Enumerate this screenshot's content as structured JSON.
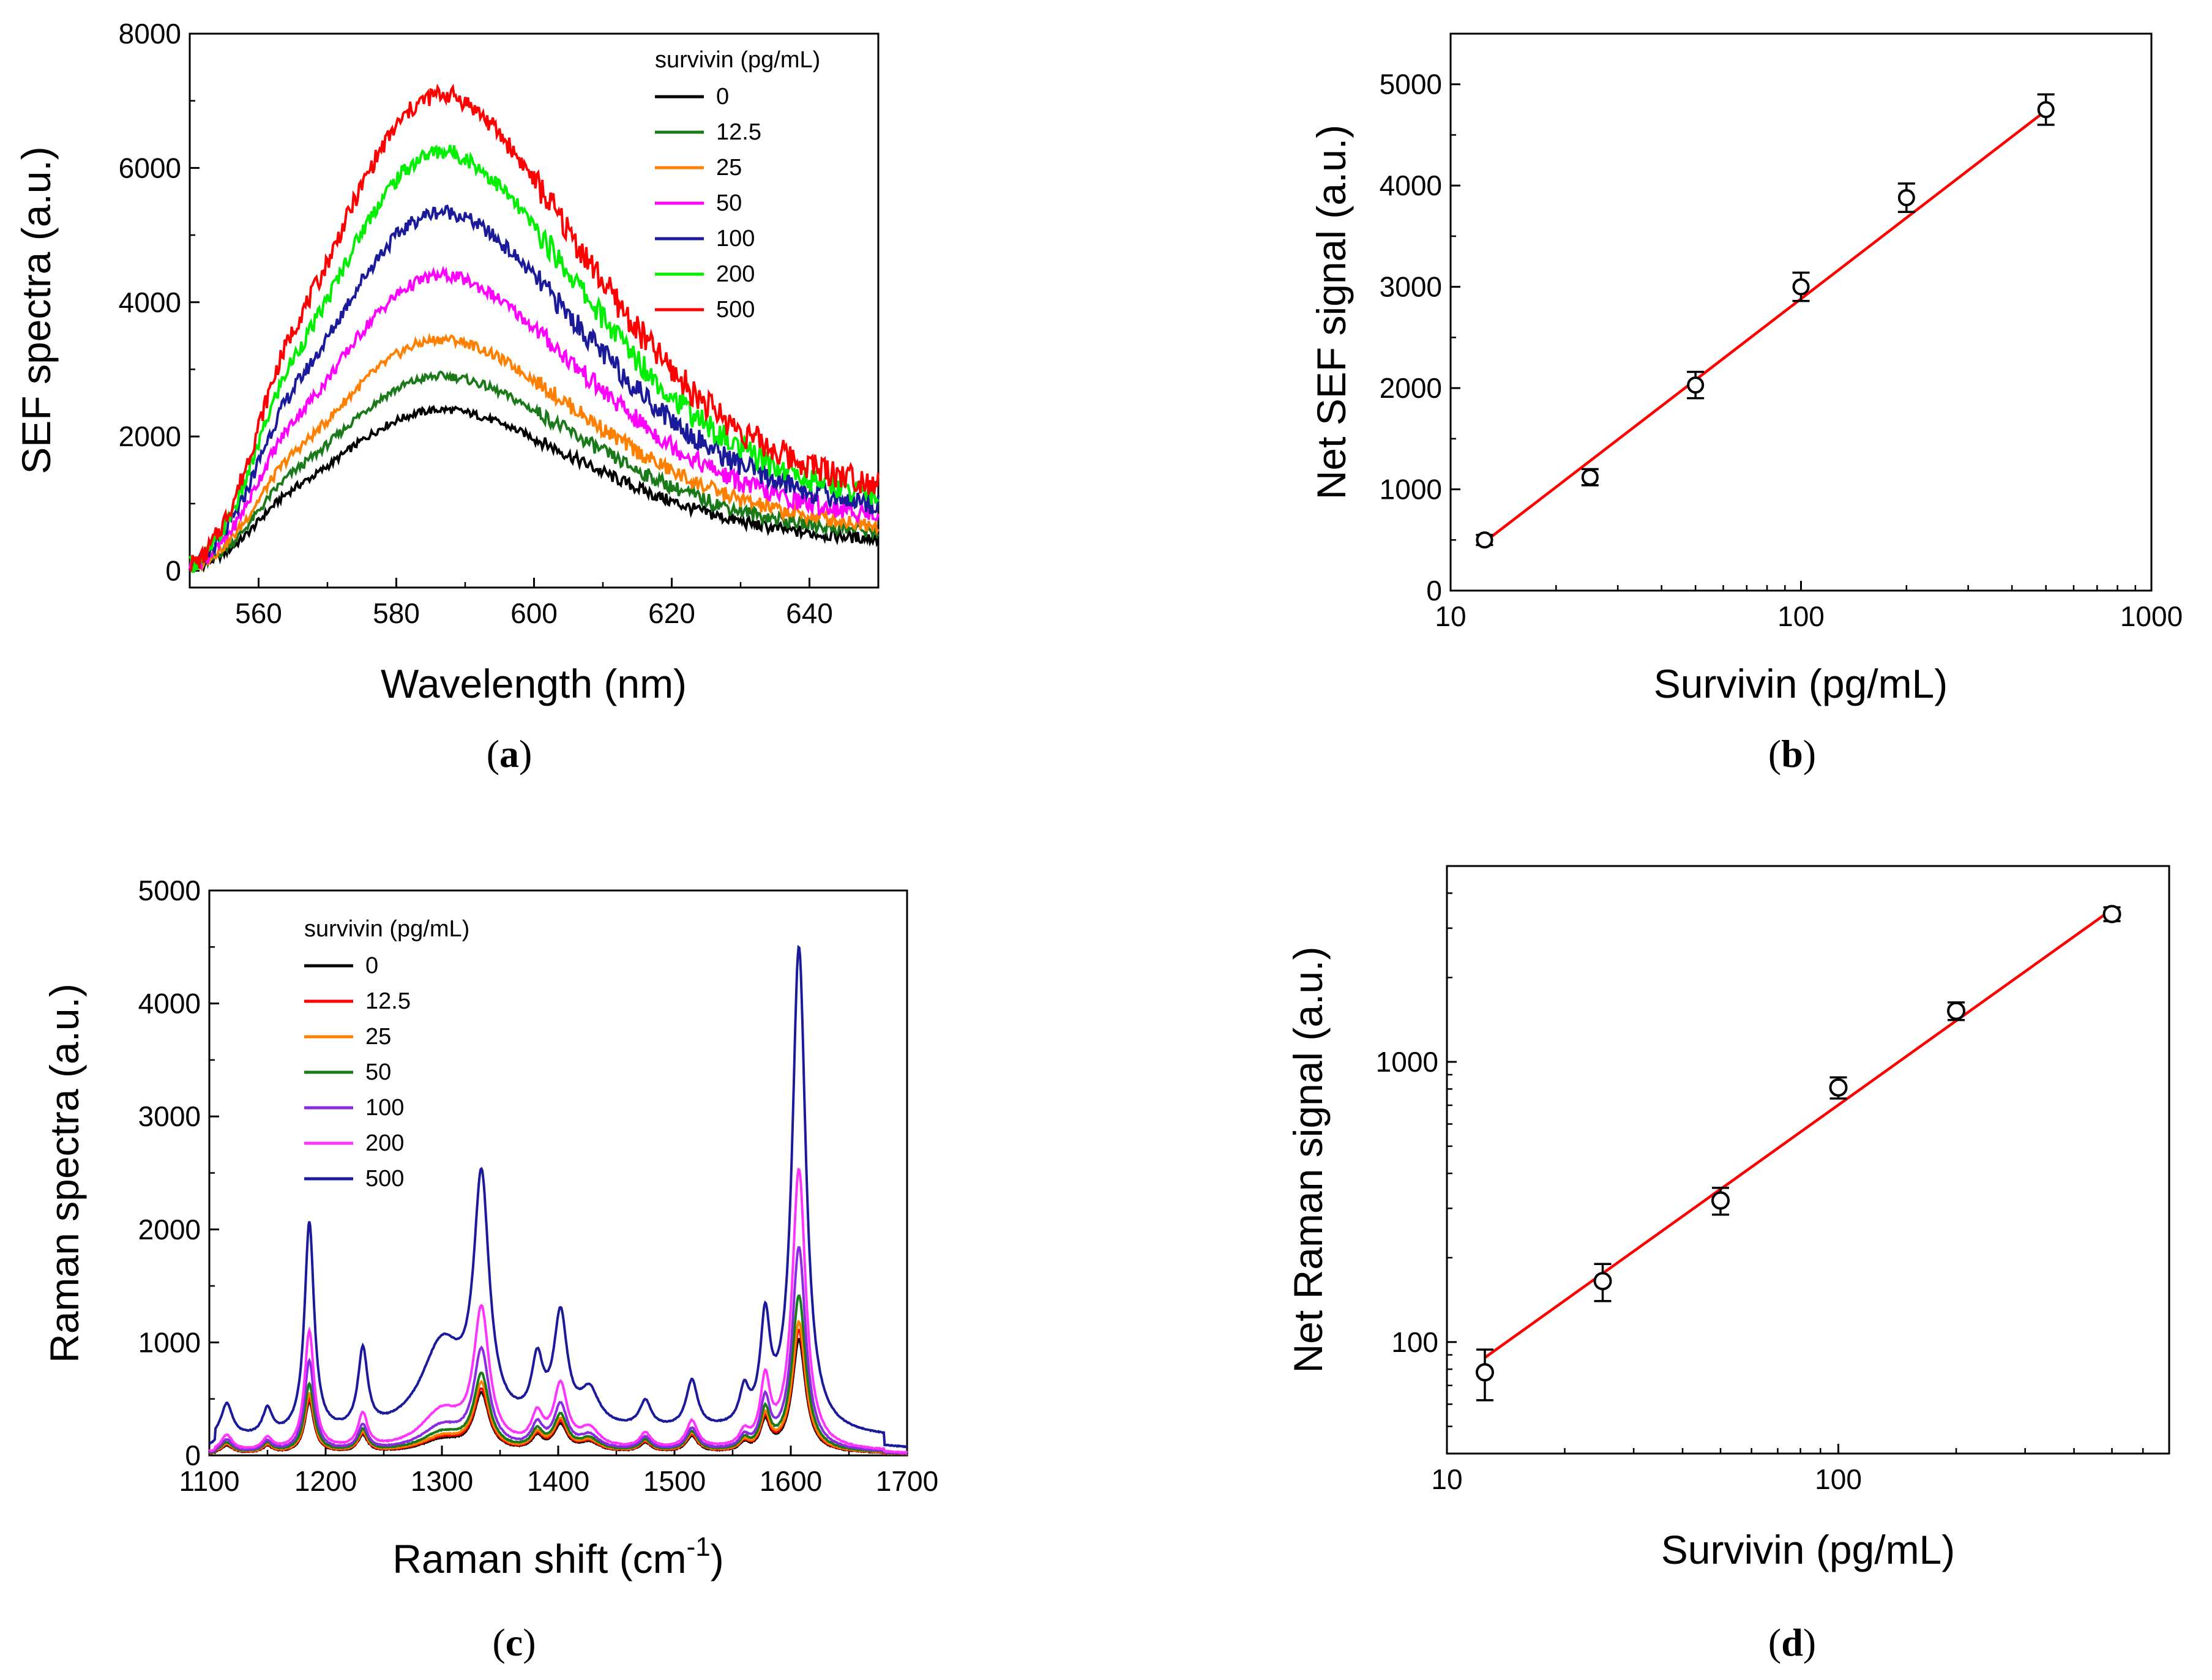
{
  "chart_data": [
    {
      "panel": "a",
      "type": "line",
      "title": "",
      "xlabel": "Wavelength (nm)",
      "ylabel": "SEF spectra (a.u.)",
      "xlim": [
        550,
        650
      ],
      "ylim": [
        -250,
        8000
      ],
      "xticks": [
        560,
        580,
        600,
        620,
        640
      ],
      "yticks": [
        0,
        2000,
        4000,
        6000,
        8000
      ],
      "legend_title": "survivin (pg/mL)",
      "legend_position": "top-right",
      "peak_wavelength": 587,
      "series": [
        {
          "name": "0",
          "color": "#000000",
          "start": 50,
          "peak": 2400,
          "end": 420
        },
        {
          "name": "12.5",
          "color": "#1a7a1a",
          "start": 60,
          "peak": 2900,
          "end": 520
        },
        {
          "name": "25",
          "color": "#ff8000",
          "start": 70,
          "peak": 3450,
          "end": 610
        },
        {
          "name": "50",
          "color": "#ff00ff",
          "start": 80,
          "peak": 4400,
          "end": 740
        },
        {
          "name": "100",
          "color": "#1a1a9a",
          "start": 90,
          "peak": 5350,
          "end": 870
        },
        {
          "name": "200",
          "color": "#00ee00",
          "start": 100,
          "peak": 6250,
          "end": 990
        },
        {
          "name": "500",
          "color": "#ff0000",
          "start": 120,
          "peak": 7100,
          "end": 1150
        }
      ]
    },
    {
      "panel": "b",
      "type": "scatter",
      "title": "",
      "xlabel": "Survivin (pg/mL)",
      "ylabel": "Net SEF signal (a.u.)",
      "xscale": "log",
      "xlim": [
        10,
        1000
      ],
      "ylim": [
        0,
        5500
      ],
      "xticks": [
        10,
        100,
        1000
      ],
      "xtick_labels": [
        "10",
        "100",
        "1000"
      ],
      "yticks": [
        0,
        1000,
        2000,
        3000,
        4000,
        5000
      ],
      "points": [
        {
          "x": 12.5,
          "y": 500,
          "err": 50
        },
        {
          "x": 25,
          "y": 1120,
          "err": 80
        },
        {
          "x": 50,
          "y": 2030,
          "err": 130
        },
        {
          "x": 100,
          "y": 3000,
          "err": 140
        },
        {
          "x": 200,
          "y": 3880,
          "err": 140
        },
        {
          "x": 500,
          "y": 4750,
          "err": 150
        }
      ],
      "fit": {
        "x": [
          12.5,
          500
        ],
        "y": [
          480,
          4740
        ],
        "color": "#ff0000"
      }
    },
    {
      "panel": "c",
      "type": "line",
      "title": "",
      "xlabel": "Raman shift (cm",
      "xlabel_sup": "-1",
      "xlabel_end": ")",
      "ylabel": "Raman spectra (a.u.)",
      "xlim": [
        1100,
        1700
      ],
      "ylim": [
        0,
        5000
      ],
      "xticks": [
        1100,
        1200,
        1300,
        1400,
        1500,
        1600,
        1700
      ],
      "yticks": [
        0,
        1000,
        2000,
        3000,
        4000,
        5000
      ],
      "legend_title": "survivin (pg/mL)",
      "legend_position": "top-left",
      "peak_positions": [
        1115,
        1150,
        1186,
        1232,
        1300,
        1334,
        1382,
        1402,
        1427,
        1475,
        1515,
        1560,
        1578,
        1607
      ],
      "series": [
        {
          "name": "0",
          "color": "#000000",
          "peaks": [
            70,
            60,
            450,
            150,
            110,
            500,
            120,
            230,
            80,
            80,
            140,
            70,
            260,
            1000
          ],
          "baseline": 20
        },
        {
          "name": "12.5",
          "color": "#ff0000",
          "peaks": [
            75,
            65,
            480,
            160,
            120,
            530,
            130,
            250,
            85,
            85,
            150,
            75,
            280,
            1080
          ],
          "baseline": 22
        },
        {
          "name": "25",
          "color": "#ff8000",
          "peaks": [
            80,
            70,
            520,
            170,
            130,
            580,
            140,
            270,
            90,
            90,
            160,
            80,
            300,
            1150
          ],
          "baseline": 25
        },
        {
          "name": "50",
          "color": "#1a7a1a",
          "peaks": [
            90,
            80,
            600,
            190,
            160,
            650,
            160,
            300,
            100,
            95,
            170,
            90,
            340,
            1380
          ],
          "baseline": 28
        },
        {
          "name": "100",
          "color": "#8a2be2",
          "peaks": [
            110,
            90,
            800,
            220,
            210,
            850,
            200,
            380,
            120,
            110,
            190,
            100,
            420,
            1800
          ],
          "baseline": 32
        },
        {
          "name": "200",
          "color": "#ff33ff",
          "peaks": [
            140,
            110,
            1050,
            300,
            330,
            1180,
            260,
            540,
            160,
            130,
            240,
            120,
            570,
            2480
          ],
          "baseline": 40
        },
        {
          "name": "500",
          "color": "#1a1a9a",
          "peaks": [
            300,
            230,
            1870,
            700,
            760,
            2100,
            520,
            960,
            300,
            230,
            420,
            300,
            900,
            4290
          ],
          "baseline": 200
        }
      ]
    },
    {
      "panel": "d",
      "type": "scatter",
      "title": "",
      "xlabel": "Survivin (pg/mL)",
      "ylabel": "Net Raman signal (a.u.)",
      "xscale": "log",
      "yscale": "log",
      "xlim": [
        10,
        700
      ],
      "ylim": [
        40,
        5000
      ],
      "xticks": [
        10,
        100
      ],
      "xtick_labels": [
        "10",
        "100"
      ],
      "yticks": [
        100,
        1000
      ],
      "ytick_labels": [
        "100",
        "1000"
      ],
      "points": [
        {
          "x": 12.5,
          "y": 78,
          "err": 16
        },
        {
          "x": 25,
          "y": 165,
          "err": 25
        },
        {
          "x": 50,
          "y": 320,
          "err": 35
        },
        {
          "x": 100,
          "y": 810,
          "err": 70
        },
        {
          "x": 200,
          "y": 1520,
          "err": 110
        },
        {
          "x": 500,
          "y": 3370,
          "err": 190
        }
      ],
      "fit": {
        "x": [
          12.5,
          500
        ],
        "y": [
          88,
          3500
        ],
        "color": "#ff0000"
      }
    }
  ],
  "panel_labels": [
    "a",
    "b",
    "c",
    "d"
  ]
}
